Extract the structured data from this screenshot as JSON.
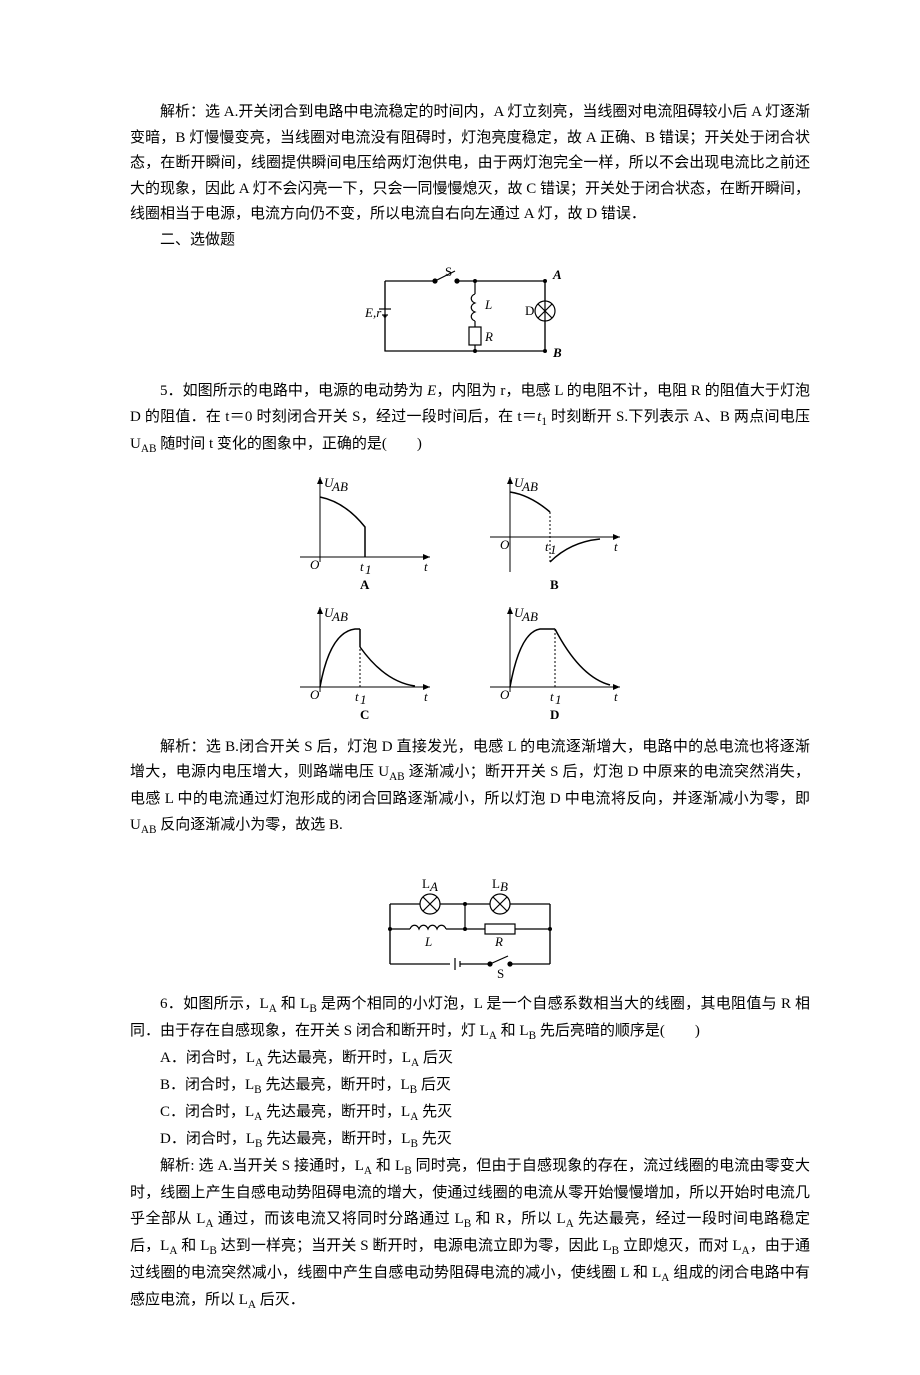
{
  "analysis_4": "解析：选 A.开关闭合到电路中电流稳定的时间内，A 灯立刻亮，当线圈对电流阻碍较小后 A 灯逐渐变暗，B 灯慢慢变亮，当线圈对电流没有阻碍时，灯泡亮度稳定，故 A 正确、B 错误；开关处于闭合状态，在断开瞬间，线圈提供瞬间电压给两灯泡供电，由于两灯泡完全一样，所以不会出现电流比之前还大的现象，因此 A 灯不会闪亮一下，只会一同慢慢熄灭，故 C 错误；开关处于闭合状态，在断开瞬间，线圈相当于电源，电流方向仍不变，所以电流自右向左通过 A 灯，故 D 错误．",
  "section_heading": "二、选做题",
  "q5": {
    "circuit": {
      "S": "S",
      "L": "L",
      "R": "R",
      "D": "D",
      "E": "E,r",
      "A": "A",
      "B": "B"
    },
    "stem_prefix": "5．如图所示的电路中，电源的电动势为 ",
    "stem_body": "，内阻为 r，电感 L 的电阻不计，电阻 R 的阻值大于灯泡 D 的阻值．在 t＝0 时刻闭合开关 S，经过一段时间后，在 t＝t₁ 时刻断开 S.下列表示 A、B 两点间电压 U_AB 随时间 t 变化的图象中，正确的是(　　)",
    "graph_labels": {
      "A": "A",
      "B": "B",
      "C": "C",
      "D": "D",
      "y": "U_AB",
      "x": "t",
      "t1": "t₁",
      "O": "O"
    },
    "analysis": "解析：选 B.闭合开关 S 后，灯泡 D 直接发光，电感 L 的电流逐渐增大，电路中的总电流也将逐渐增大，电源内电压增大，则路端电压 U_AB 逐渐减小；断开开关 S 后，灯泡 D 中原来的电流突然消失，电感 L 中的电流通过灯泡形成的闭合回路逐渐减小，所以灯泡 D 中电流将反向，并逐渐减小为零，即 U_AB 反向逐渐减小为零，故选 B."
  },
  "q6": {
    "circuit": {
      "LA": "L_A",
      "LB": "L_B",
      "L": "L",
      "R": "R",
      "S": "S"
    },
    "stem": "6．如图所示，L_A 和 L_B 是两个相同的小灯泡，L 是一个自感系数相当大的线圈，其电阻值与 R 相同．由于存在自感现象，在开关 S 闭合和断开时，灯 L_A 和 L_B 先后亮暗的顺序是(　　)",
    "options": {
      "A": "A．闭合时，L_A 先达最亮，断开时，L_A 后灭",
      "B": "B．闭合时，L_B 先达最亮，断开时，L_B 后灭",
      "C": "C．闭合时，L_A 先达最亮，断开时，L_A 先灭",
      "D": "D．闭合时，L_B 先达最亮，断开时，L_B 先灭"
    },
    "analysis": "解析: 选 A.当开关 S 接通时，L_A 和 L_B 同时亮，但由于自感现象的存在，流过线圈的电流由零变大时，线圈上产生自感电动势阻碍电流的增大，使通过线圈的电流从零开始慢慢增加，所以开始时电流几乎全部从 L_A 通过，而该电流又将同时分路通过 L_B 和 R，所以 L_A 先达最亮，经过一段时间电路稳定后，L_A 和 L_B 达到一样亮；当开关 S 断开时，电源电流立即为零，因此 L_B 立即熄灭，而对 L_A，由于通过线圈的电流突然减小，线圈中产生自感电动势阻碍电流的减小，使线圈 L 和 L_A 组成的闭合电路中有感应电流，所以 L_A 后灭．"
  }
}
